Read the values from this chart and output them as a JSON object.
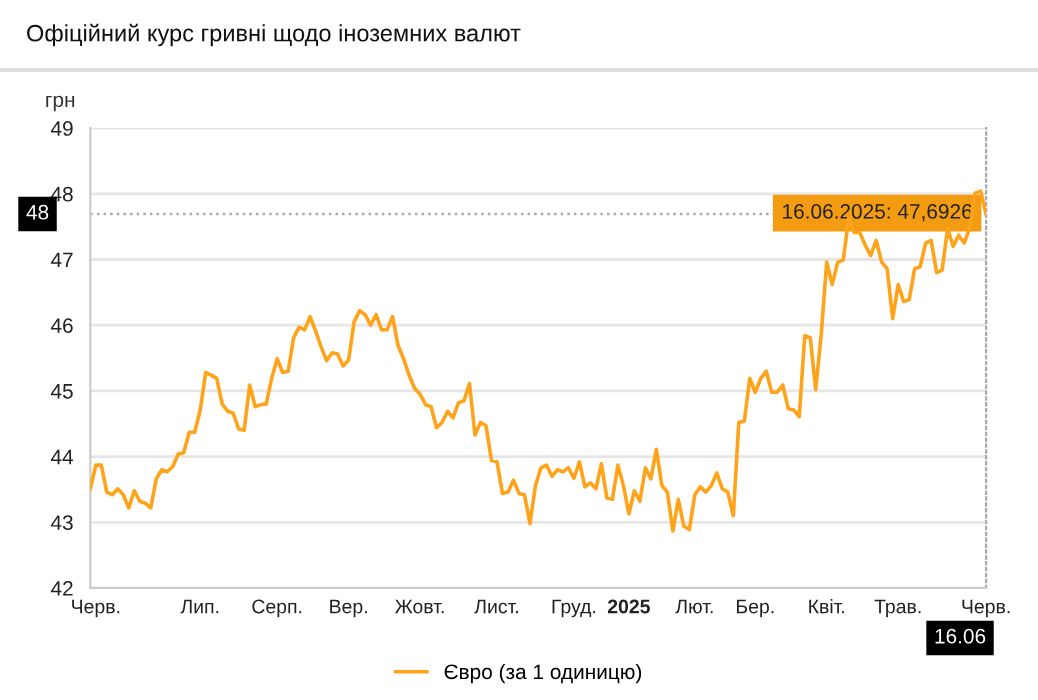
{
  "chart_data": {
    "type": "line",
    "title": "Офіційний курс гривні щодо іноземних валют",
    "ylabel": "грн",
    "ylim": [
      42,
      49
    ],
    "yticks": [
      42,
      43,
      44,
      45,
      46,
      47,
      48,
      49
    ],
    "categories": [
      null,
      "Черв.",
      null,
      null,
      null,
      null,
      null,
      null,
      null,
      null,
      null,
      null,
      null,
      null,
      null,
      null,
      null,
      null,
      null,
      null,
      "Лип.",
      null,
      null,
      null,
      null,
      null,
      null,
      null,
      null,
      null,
      null,
      null,
      null,
      null,
      "Серп.",
      null,
      null,
      null,
      null,
      null,
      null,
      null,
      null,
      null,
      null,
      null,
      null,
      "Вер.",
      null,
      null,
      null,
      null,
      null,
      null,
      null,
      null,
      null,
      null,
      null,
      null,
      "Жовт.",
      null,
      null,
      null,
      null,
      null,
      null,
      null,
      null,
      null,
      null,
      null,
      null,
      null,
      "Лист.",
      null,
      null,
      null,
      null,
      null,
      null,
      null,
      null,
      null,
      null,
      null,
      null,
      null,
      "Груд.",
      null,
      null,
      null,
      null,
      null,
      null,
      null,
      null,
      null,
      "2025",
      null,
      null,
      null,
      null,
      null,
      null,
      null,
      null,
      null,
      null,
      null,
      "Лют.",
      null,
      null,
      null,
      null,
      null,
      null,
      null,
      null,
      null,
      null,
      "Бер.",
      null,
      null,
      null,
      null,
      null,
      null,
      null,
      null,
      null,
      null,
      null,
      null,
      "Квіт.",
      null,
      null,
      null,
      null,
      null,
      null,
      null,
      null,
      null,
      null,
      null,
      null,
      "Трав.",
      null,
      null,
      null,
      null,
      null,
      null,
      null,
      null,
      null,
      null,
      null,
      null,
      null,
      null,
      null,
      "Черв."
    ],
    "grid": "y",
    "legend": "bottom",
    "marker": "none",
    "line_style": "solid",
    "ref_lines": [
      {
        "axis": "y",
        "value": 47.6926,
        "label": "48",
        "line_style": "dotted",
        "color": "#aaaaaa"
      }
    ],
    "annotations": [
      "16.06.2025: 47,6926",
      "16.06"
    ],
    "series": [
      {
        "name": "Євро (за 1 одиницю)",
        "color": "#ffa31a",
        "values": [
          43.51,
          43.87,
          43.87,
          43.46,
          43.42,
          43.51,
          43.42,
          43.22,
          43.48,
          43.32,
          43.29,
          43.22,
          43.66,
          43.8,
          43.77,
          43.85,
          44.04,
          44.06,
          44.37,
          44.37,
          44.71,
          45.28,
          45.24,
          45.19,
          44.8,
          44.69,
          44.66,
          44.42,
          44.4,
          45.09,
          44.76,
          44.79,
          44.8,
          45.19,
          45.49,
          45.28,
          45.3,
          45.81,
          45.97,
          45.93,
          46.13,
          45.91,
          45.67,
          45.46,
          45.58,
          45.56,
          45.38,
          45.47,
          46.05,
          46.22,
          46.16,
          46.0,
          46.16,
          45.93,
          45.93,
          46.13,
          45.69,
          45.49,
          45.24,
          45.04,
          44.95,
          44.79,
          44.76,
          44.44,
          44.52,
          44.69,
          44.59,
          44.82,
          44.85,
          45.11,
          44.33,
          44.52,
          44.47,
          43.94,
          43.92,
          43.44,
          43.46,
          43.64,
          43.44,
          43.42,
          42.98,
          43.56,
          43.83,
          43.87,
          43.7,
          43.8,
          43.77,
          43.83,
          43.67,
          43.92,
          43.54,
          43.6,
          43.51,
          43.89,
          43.37,
          43.35,
          43.87,
          43.56,
          43.13,
          43.48,
          43.32,
          43.83,
          43.66,
          44.11,
          43.56,
          43.46,
          42.87,
          43.35,
          42.94,
          42.89,
          43.42,
          43.54,
          43.46,
          43.56,
          43.75,
          43.51,
          43.46,
          43.1,
          44.52,
          44.54,
          45.19,
          44.98,
          45.19,
          45.3,
          44.98,
          44.98,
          45.09,
          44.73,
          44.71,
          44.61,
          45.84,
          45.81,
          45.02,
          45.86,
          46.96,
          46.62,
          46.96,
          46.99,
          47.63,
          47.41,
          47.41,
          47.22,
          47.06,
          47.29,
          46.96,
          46.86,
          46.1,
          46.62,
          46.36,
          46.39,
          46.86,
          46.89,
          47.25,
          47.29,
          46.8,
          46.84,
          47.47,
          47.2,
          47.37,
          47.25,
          47.47,
          48.01,
          48.04,
          47.6926
        ]
      }
    ]
  }
}
